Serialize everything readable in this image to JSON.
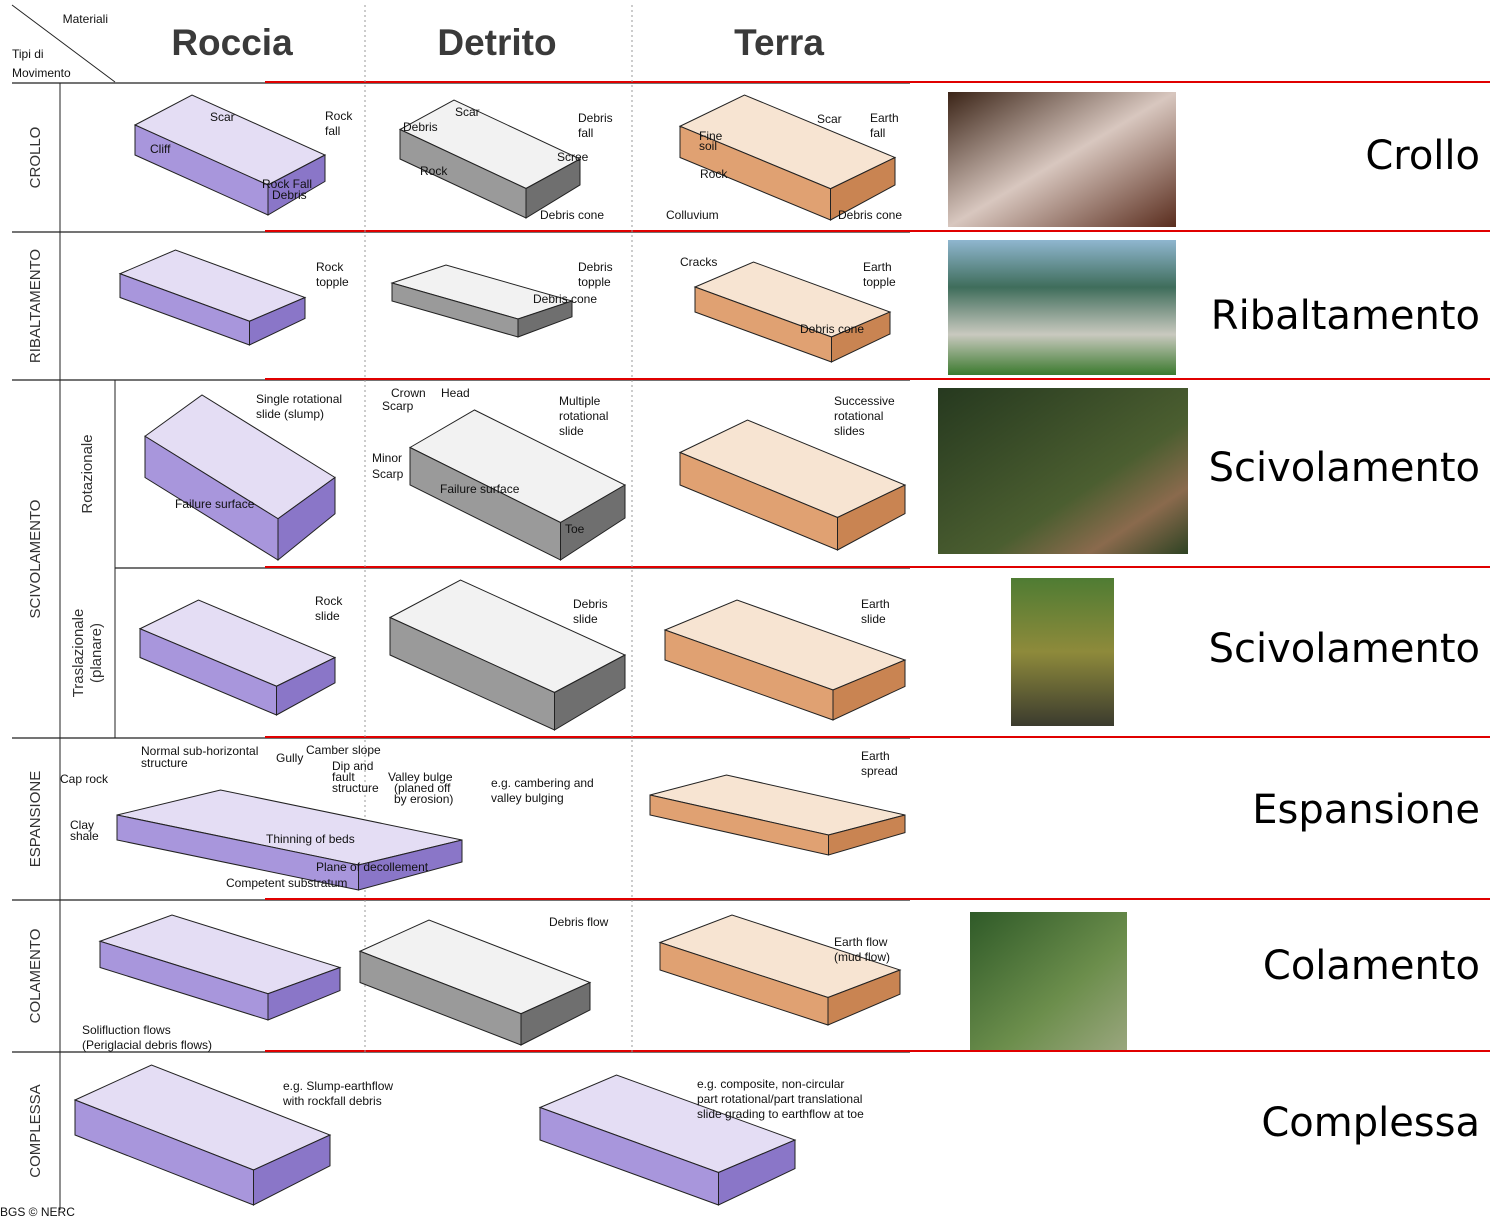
{
  "header": {
    "corner_top": "Materiali",
    "corner_bottom": [
      "Tipi di",
      "Movimento"
    ],
    "columns": [
      "Roccia",
      "Detrito",
      "Terra"
    ]
  },
  "rows": [
    {
      "type_label": "CROLLO",
      "title": "Crollo",
      "cells": [
        {
          "caption": [
            "Rock",
            "fall"
          ],
          "labels": [
            "Scar",
            "Cliff",
            "Rock Fall",
            "Debris"
          ]
        },
        {
          "caption": [
            "Debris",
            "fall"
          ],
          "labels": [
            "Scar",
            "Debris",
            "Rock",
            "Scree",
            "Debris cone"
          ]
        },
        {
          "caption": [
            "Earth",
            "fall"
          ],
          "labels": [
            "Scar",
            "Fine",
            "soil",
            "Rock",
            "Colluvium",
            "Debris cone"
          ]
        }
      ]
    },
    {
      "type_label": "RIBALTAMENTO",
      "title": "Ribaltamento",
      "cells": [
        {
          "caption": [
            "Rock",
            "topple"
          ],
          "labels": []
        },
        {
          "caption": [
            "Debris",
            "topple"
          ],
          "labels": [
            "Debris cone"
          ]
        },
        {
          "caption": [
            "Earth",
            "topple"
          ],
          "labels": [
            "Cracks",
            "Debris cone"
          ]
        }
      ]
    },
    {
      "type_label": "SCIVOLAMENTO",
      "sublabel": [
        "Rotazionale"
      ],
      "title": "Scivolamento",
      "cells": [
        {
          "caption": [
            "Single rotational",
            "slide (slump)"
          ],
          "labels": [
            "Failure surface"
          ]
        },
        {
          "caption": [
            "Multiple",
            "rotational",
            "slide"
          ],
          "labels": [
            "Crown",
            "Head",
            "Scarp",
            "Minor",
            "Scarp",
            "Failure surface",
            "Toe"
          ]
        },
        {
          "caption": [
            "Successive",
            "rotational",
            "slides"
          ],
          "labels": []
        }
      ]
    },
    {
      "sublabel": [
        "Traslazionale",
        "(planare)"
      ],
      "title": "Scivolamento",
      "cells": [
        {
          "caption": [
            "Rock",
            "slide"
          ],
          "labels": []
        },
        {
          "caption": [
            "Debris",
            "slide"
          ],
          "labels": []
        },
        {
          "caption": [
            "Earth",
            "slide"
          ],
          "labels": []
        }
      ]
    },
    {
      "type_label": "ESPANSIONE",
      "title": "Espansione",
      "cells": [
        {
          "caption": [],
          "labels": [
            "Normal sub-horizontal",
            "structure",
            "Gully",
            "Camber slope",
            "Dip and",
            "fault",
            "structure",
            "Valley bulge",
            "(planed off",
            "by erosion)",
            "Cap rock",
            "Clay",
            "shale",
            "Thinning of beds",
            "Plane of decollement",
            "Competent substratum"
          ]
        },
        {
          "caption": [
            "e.g. cambering and",
            "valley bulging"
          ],
          "labels": []
        },
        {
          "caption": [
            "Earth",
            "spread"
          ],
          "labels": []
        }
      ]
    },
    {
      "type_label": "COLAMENTO",
      "title": "Colamento",
      "cells": [
        {
          "caption": [
            "Solifluction flows",
            "(Periglacial debris flows)"
          ],
          "labels": []
        },
        {
          "caption": [
            "Debris flow"
          ],
          "labels": []
        },
        {
          "caption": [
            "Earth flow",
            "(mud flow)"
          ],
          "labels": []
        }
      ]
    },
    {
      "type_label": "COMPLESSA",
      "title": "Complessa",
      "cells": [
        {
          "caption": [
            "e.g. Slump-earthflow",
            "with rockfall debris"
          ],
          "labels": []
        },
        {
          "caption": [
            "e.g. composite, non-circular",
            "part rotational/part translational",
            "slide grading to earthflow at toe"
          ],
          "labels": []
        }
      ]
    }
  ],
  "credit": "BGS © NERC"
}
